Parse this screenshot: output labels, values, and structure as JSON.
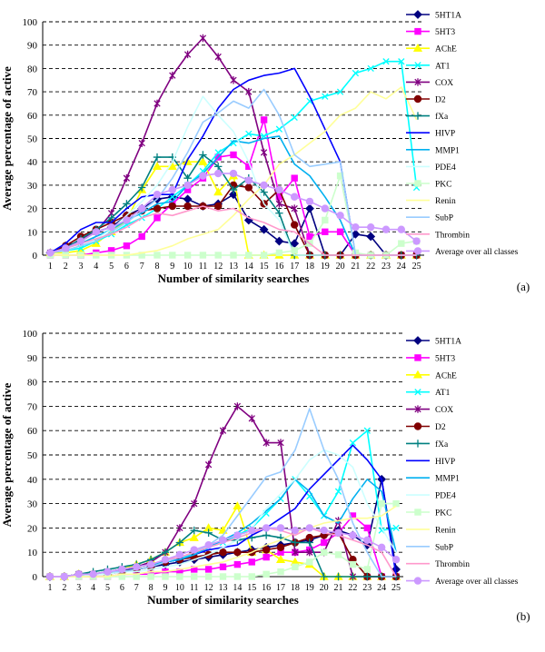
{
  "chart_data": [
    {
      "type": "line",
      "panel_label": "(a)",
      "xlabel": "Number of similarity searches",
      "ylabel": "Average percentage of active",
      "x": [
        1,
        2,
        3,
        4,
        5,
        6,
        7,
        8,
        9,
        10,
        11,
        12,
        13,
        14,
        15,
        16,
        17,
        18,
        19,
        20,
        21,
        22,
        23,
        24,
        25
      ],
      "ylim": [
        0,
        100
      ],
      "yticks": [
        0,
        10,
        20,
        30,
        40,
        50,
        60,
        70,
        80,
        90,
        100
      ],
      "grid": "horizontal dashed",
      "legend_position": "right",
      "series": [
        {
          "name": "5HT1A",
          "color": "#000080",
          "marker": "diamond",
          "values": [
            1,
            4,
            6,
            10,
            12,
            17,
            20,
            24,
            25,
            24,
            21,
            22,
            26,
            15,
            11,
            6,
            5,
            20,
            0,
            0,
            9,
            8,
            0,
            0,
            0
          ]
        },
        {
          "name": "5HT3",
          "color": "#ff00ff",
          "marker": "square",
          "values": [
            0,
            0,
            0,
            1,
            2,
            4,
            8,
            16,
            22,
            28,
            33,
            42,
            43,
            38,
            58,
            25,
            33,
            8,
            10,
            10,
            0,
            0,
            0,
            0,
            0
          ]
        },
        {
          "name": "AChE",
          "color": "#ffff00",
          "marker": "triangle",
          "values": [
            1,
            1,
            2,
            5,
            10,
            15,
            28,
            38,
            38,
            40,
            40,
            27,
            34,
            0,
            0,
            0,
            0,
            0,
            0,
            0,
            0,
            0,
            0,
            0,
            0
          ]
        },
        {
          "name": "AT1",
          "color": "#00ffff",
          "marker": "x",
          "values": [
            1,
            2,
            3,
            6,
            9,
            13,
            16,
            20,
            25,
            30,
            36,
            44,
            48,
            52,
            51,
            54,
            59,
            66,
            68,
            70,
            78,
            80,
            83,
            83,
            29
          ]
        },
        {
          "name": "COX",
          "color": "#800080",
          "marker": "star",
          "values": [
            1,
            3,
            7,
            10,
            18,
            33,
            48,
            65,
            77,
            86,
            93,
            85,
            75,
            70,
            44,
            22,
            20,
            0,
            0,
            0,
            0,
            0,
            0,
            0,
            0
          ]
        },
        {
          "name": "D2",
          "color": "#800000",
          "marker": "circle",
          "values": [
            1,
            4,
            8,
            11,
            14,
            17,
            19,
            20,
            21,
            21,
            21,
            21,
            30,
            29,
            22,
            28,
            13,
            0,
            0,
            0,
            0,
            0,
            0,
            0,
            0
          ]
        },
        {
          "name": "fXa",
          "color": "#008080",
          "marker": "plus",
          "values": [
            1,
            3,
            7,
            11,
            16,
            22,
            29,
            42,
            42,
            33,
            43,
            38,
            28,
            33,
            27,
            18,
            0,
            0,
            0,
            0,
            0,
            0,
            0,
            0,
            0
          ]
        },
        {
          "name": "HIVP",
          "color": "#0000ff",
          "marker": "none",
          "values": [
            1,
            5,
            11,
            14,
            14,
            20,
            25,
            26,
            26,
            41,
            51,
            63,
            71,
            75,
            77,
            78,
            80,
            68,
            54,
            40,
            0,
            0,
            0,
            0,
            0
          ]
        },
        {
          "name": "MMP1",
          "color": "#00b0f0",
          "marker": "none",
          "values": [
            1,
            3,
            5,
            8,
            11,
            15,
            18,
            22,
            23,
            30,
            35,
            42,
            49,
            48,
            50,
            51,
            39,
            34,
            25,
            15,
            0,
            0,
            0,
            0,
            0
          ]
        },
        {
          "name": "PDE4",
          "color": "#ccffff",
          "marker": "none",
          "values": [
            1,
            2,
            4,
            7,
            11,
            17,
            23,
            30,
            40,
            55,
            68,
            60,
            53,
            40,
            22,
            15,
            0,
            0,
            0,
            0,
            0,
            0,
            0,
            0,
            0
          ]
        },
        {
          "name": "PKC",
          "color": "#ccffcc",
          "marker": "square",
          "values": [
            0,
            0,
            0,
            0,
            0,
            0,
            0,
            0,
            0,
            0,
            0,
            0,
            0,
            0,
            0,
            1,
            2,
            5,
            15,
            34,
            1,
            0,
            0,
            5,
            6
          ]
        },
        {
          "name": "Renin",
          "color": "#ffff99",
          "marker": "none",
          "values": [
            0,
            0,
            0,
            0,
            0,
            0,
            1,
            2,
            4,
            7,
            9,
            11,
            17,
            24,
            30,
            39,
            43,
            48,
            53,
            60,
            63,
            70,
            67,
            72,
            58
          ]
        },
        {
          "name": "SubP",
          "color": "#99ccff",
          "marker": "none",
          "values": [
            1,
            2,
            4,
            6,
            10,
            14,
            19,
            24,
            33,
            44,
            57,
            61,
            66,
            63,
            71,
            60,
            43,
            38,
            39,
            40,
            0,
            0,
            0,
            0,
            0
          ]
        },
        {
          "name": "Thrombin",
          "color": "#ff99cc",
          "marker": "none",
          "values": [
            1,
            3,
            5,
            7,
            9,
            12,
            16,
            18,
            17,
            19,
            21,
            19,
            20,
            16,
            14,
            11,
            10,
            5,
            0,
            0,
            0,
            0,
            0,
            0,
            0
          ]
        },
        {
          "name": "Average over all classes",
          "color": "#cc99ff",
          "marker": "circle",
          "values": [
            1,
            3,
            6,
            10,
            12,
            15,
            20,
            26,
            28,
            30,
            34,
            35,
            35,
            32,
            30,
            28,
            25,
            23,
            20,
            17,
            12,
            12,
            11,
            11,
            6
          ]
        }
      ]
    },
    {
      "type": "line",
      "panel_label": "(b)",
      "xlabel": "Number of similarity searches",
      "ylabel": "Average percentage of active",
      "x": [
        1,
        2,
        3,
        4,
        5,
        6,
        7,
        8,
        9,
        10,
        11,
        12,
        13,
        14,
        15,
        16,
        17,
        18,
        19,
        20,
        21,
        22,
        23,
        24,
        25
      ],
      "ylim": [
        0,
        100
      ],
      "yticks": [
        0,
        10,
        20,
        30,
        40,
        50,
        60,
        70,
        80,
        90,
        100
      ],
      "grid": "horizontal dashed",
      "legend_position": "right",
      "series": [
        {
          "name": "5HT1A",
          "color": "#000080",
          "marker": "diamond",
          "values": [
            0,
            0,
            1,
            1,
            2,
            3,
            3,
            4,
            5,
            6,
            7,
            8,
            9,
            10,
            11,
            12,
            13,
            14,
            15,
            17,
            19,
            17,
            13,
            40,
            3
          ]
        },
        {
          "name": "5HT3",
          "color": "#ff00ff",
          "marker": "square",
          "values": [
            0,
            0,
            0,
            0,
            0,
            1,
            1,
            1,
            2,
            2,
            3,
            3,
            4,
            5,
            6,
            8,
            10,
            10,
            11,
            14,
            18,
            25,
            20,
            0,
            0
          ]
        },
        {
          "name": "AChE",
          "color": "#ffff00",
          "marker": "triangle",
          "values": [
            0,
            0,
            1,
            1,
            2,
            3,
            5,
            7,
            10,
            14,
            16,
            20,
            19,
            29,
            10,
            11,
            7,
            6,
            5,
            0,
            0,
            0,
            0,
            0,
            0
          ]
        },
        {
          "name": "AT1",
          "color": "#00ffff",
          "marker": "x",
          "values": [
            0,
            0,
            1,
            1,
            2,
            2,
            3,
            4,
            6,
            7,
            10,
            12,
            14,
            17,
            20,
            26,
            32,
            40,
            33,
            25,
            35,
            55,
            60,
            19,
            20
          ]
        },
        {
          "name": "COX",
          "color": "#800080",
          "marker": "star",
          "values": [
            0,
            0,
            1,
            1,
            2,
            3,
            4,
            6,
            10,
            20,
            30,
            46,
            60,
            70,
            65,
            55,
            55,
            10,
            10,
            10,
            23,
            0,
            0,
            0,
            0
          ]
        },
        {
          "name": "D2",
          "color": "#800000",
          "marker": "circle",
          "values": [
            0,
            0,
            1,
            1,
            1,
            2,
            3,
            4,
            6,
            7,
            8,
            9,
            10,
            10,
            10,
            11,
            12,
            14,
            16,
            17,
            18,
            7,
            0,
            0,
            0
          ]
        },
        {
          "name": "fXa",
          "color": "#008080",
          "marker": "plus",
          "values": [
            0,
            0,
            1,
            2,
            3,
            4,
            5,
            7,
            10,
            14,
            19,
            18,
            15,
            15,
            16,
            17,
            16,
            14,
            14,
            0,
            0,
            0,
            0,
            0,
            0
          ]
        },
        {
          "name": "HIVP",
          "color": "#0000ff",
          "marker": "none",
          "values": [
            0,
            0,
            1,
            1,
            2,
            3,
            4,
            5,
            6,
            7,
            9,
            11,
            12,
            13,
            17,
            20,
            24,
            28,
            36,
            42,
            48,
            54,
            48,
            40,
            0
          ]
        },
        {
          "name": "MMP1",
          "color": "#00b0f0",
          "marker": "none",
          "values": [
            0,
            0,
            1,
            1,
            2,
            3,
            4,
            5,
            6,
            7,
            9,
            12,
            15,
            18,
            22,
            27,
            32,
            40,
            35,
            25,
            22,
            32,
            40,
            35,
            10
          ]
        },
        {
          "name": "PDE4",
          "color": "#ccffff",
          "marker": "none",
          "values": [
            0,
            0,
            0,
            1,
            1,
            2,
            2,
            3,
            4,
            5,
            7,
            9,
            12,
            15,
            20,
            28,
            34,
            40,
            48,
            52,
            50,
            45,
            30,
            20,
            10
          ]
        },
        {
          "name": "PKC",
          "color": "#ccffcc",
          "marker": "square",
          "values": [
            0,
            0,
            0,
            0,
            0,
            0,
            0,
            0,
            0,
            0,
            0,
            0,
            0,
            0,
            0,
            1,
            2,
            4,
            6,
            10,
            9,
            5,
            3,
            30,
            30
          ]
        },
        {
          "name": "Renin",
          "color": "#ffff99",
          "marker": "none",
          "values": [
            0,
            0,
            0,
            0,
            0,
            1,
            1,
            2,
            2,
            3,
            4,
            5,
            6,
            8,
            10,
            13,
            15,
            18,
            20,
            22,
            23,
            24,
            24,
            25,
            29
          ]
        },
        {
          "name": "SubP",
          "color": "#99ccff",
          "marker": "none",
          "values": [
            0,
            0,
            1,
            1,
            2,
            2,
            3,
            4,
            6,
            8,
            10,
            13,
            17,
            25,
            33,
            41,
            43,
            52,
            69,
            52,
            40,
            22,
            10,
            0,
            0
          ]
        },
        {
          "name": "Thrombin",
          "color": "#ff99cc",
          "marker": "none",
          "values": [
            0,
            0,
            1,
            1,
            2,
            3,
            4,
            5,
            7,
            8,
            10,
            12,
            14,
            16,
            18,
            20,
            19,
            17,
            20,
            18,
            17,
            15,
            13,
            10,
            0
          ]
        },
        {
          "name": "Average over all classes",
          "color": "#cc99ff",
          "marker": "circle",
          "values": [
            0,
            0,
            1,
            1,
            2,
            3,
            4,
            5,
            7,
            9,
            11,
            13,
            15,
            17,
            19,
            20,
            20,
            19,
            20,
            19,
            18,
            17,
            15,
            12,
            7
          ]
        }
      ]
    }
  ]
}
